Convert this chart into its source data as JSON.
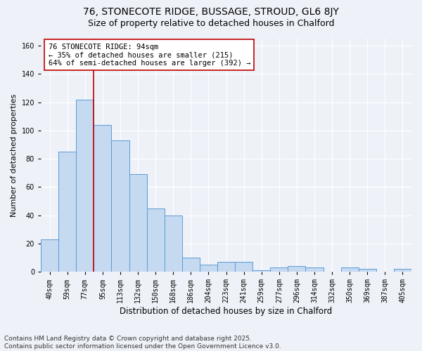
{
  "title1": "76, STONECOTE RIDGE, BUSSAGE, STROUD, GL6 8JY",
  "title2": "Size of property relative to detached houses in Chalford",
  "xlabel": "Distribution of detached houses by size in Chalford",
  "ylabel": "Number of detached properties",
  "bar_labels": [
    "40sqm",
    "59sqm",
    "77sqm",
    "95sqm",
    "113sqm",
    "132sqm",
    "150sqm",
    "168sqm",
    "186sqm",
    "204sqm",
    "223sqm",
    "241sqm",
    "259sqm",
    "277sqm",
    "296sqm",
    "314sqm",
    "332sqm",
    "350sqm",
    "369sqm",
    "387sqm",
    "405sqm"
  ],
  "bar_values": [
    23,
    85,
    122,
    104,
    93,
    69,
    45,
    40,
    10,
    5,
    7,
    7,
    1,
    3,
    4,
    3,
    0,
    3,
    2,
    0,
    2
  ],
  "bar_color": "#c5d9f0",
  "bar_edgecolor": "#5b9bd5",
  "vline_color": "#c00000",
  "ylim": [
    0,
    165
  ],
  "yticks": [
    0,
    20,
    40,
    60,
    80,
    100,
    120,
    140,
    160
  ],
  "annotation_text": "76 STONECOTE RIDGE: 94sqm\n← 35% of detached houses are smaller (215)\n64% of semi-detached houses are larger (392) →",
  "annotation_box_color": "#ffffff",
  "annotation_box_edgecolor": "#c00000",
  "background_color": "#eef2f8",
  "footer_text": "Contains HM Land Registry data © Crown copyright and database right 2025.\nContains public sector information licensed under the Open Government Licence v3.0.",
  "title1_fontsize": 10,
  "title2_fontsize": 9,
  "xlabel_fontsize": 8.5,
  "ylabel_fontsize": 8,
  "tick_fontsize": 7,
  "annotation_fontsize": 7.5,
  "footer_fontsize": 6.5
}
